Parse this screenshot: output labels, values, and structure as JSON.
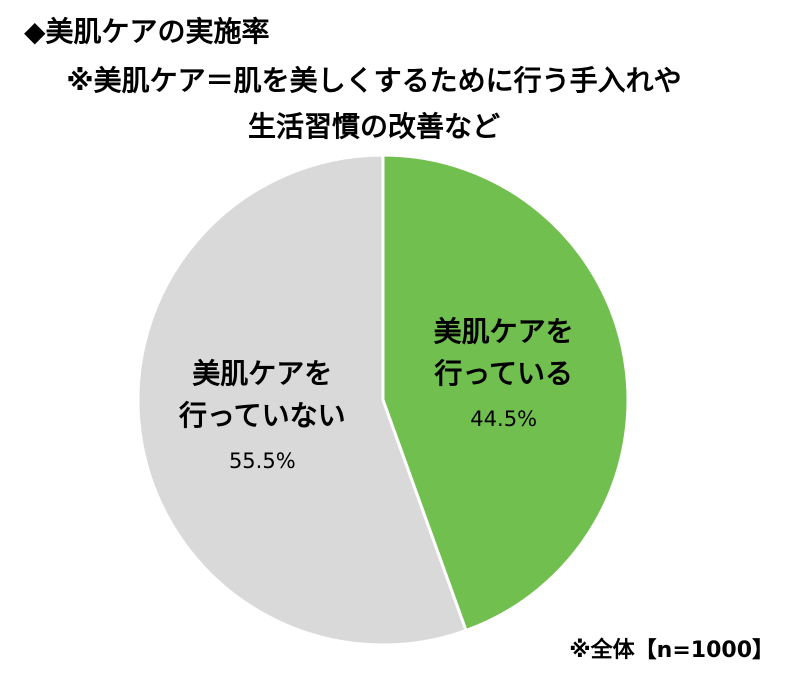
{
  "chart_data": {
    "type": "pie",
    "title": "◆美肌ケアの実施率",
    "subtitle": "※美肌ケア＝肌を美しくするために行う手入れや\n生活習慣の改善など",
    "categories": [
      "美肌ケアを\n行っている",
      "美肌ケアを\n行っていない"
    ],
    "values": [
      44.5,
      55.5
    ],
    "value_labels": [
      "44.5%",
      "55.5%"
    ],
    "colors": [
      "#70bf4f",
      "#d9d9d9"
    ],
    "note": "※全体【n=1000】"
  }
}
